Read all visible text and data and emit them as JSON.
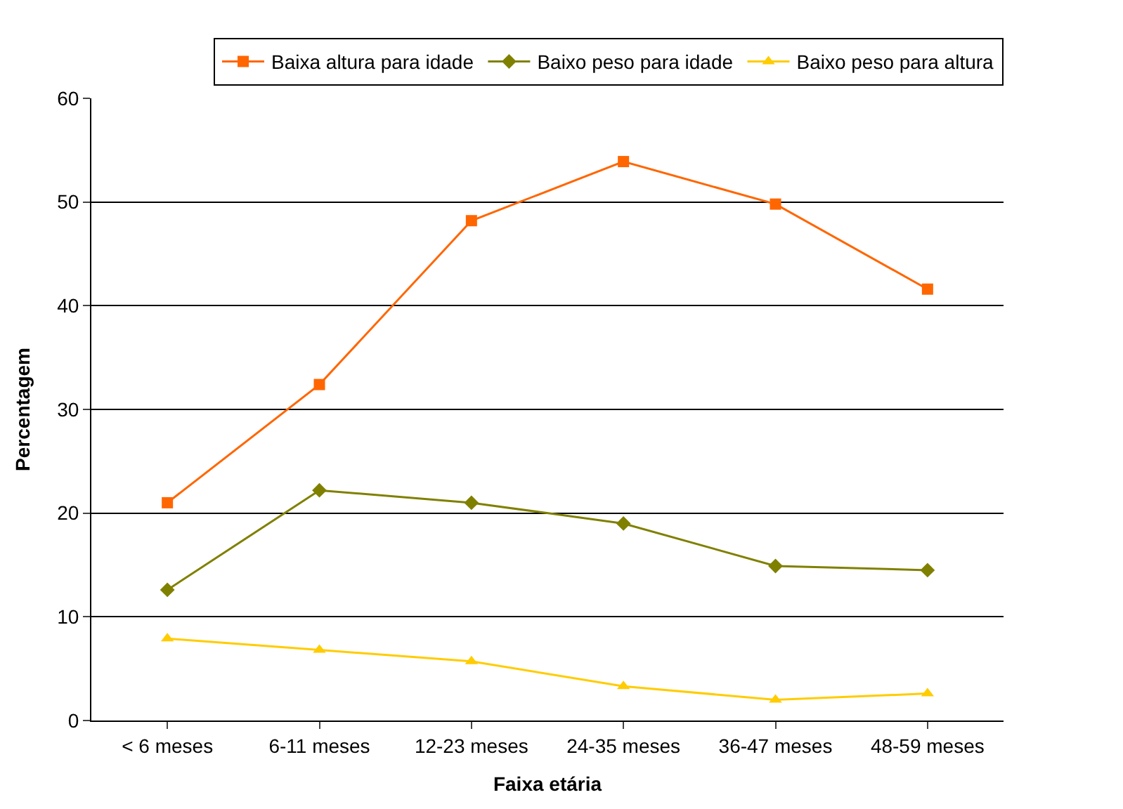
{
  "chart_data": {
    "type": "line",
    "xlabel": "Faixa etária",
    "ylabel": "Percentagem",
    "categories": [
      "< 6 meses",
      "6-11 meses",
      "12-23 meses",
      "24-35 meses",
      "36-47 meses",
      "48-59 meses"
    ],
    "series": [
      {
        "name": "Baixa altura para idade",
        "color": "#ff6600",
        "marker": "square",
        "values": [
          21.0,
          32.4,
          48.2,
          53.9,
          49.8,
          41.6
        ]
      },
      {
        "name": "Baixo peso para idade",
        "color": "#808000",
        "marker": "diamond",
        "values": [
          12.6,
          22.2,
          21.0,
          19.0,
          14.9,
          14.5
        ]
      },
      {
        "name": "Baixo peso para altura",
        "color": "#ffcc00",
        "marker": "triangle",
        "values": [
          7.9,
          6.8,
          5.7,
          3.3,
          2.0,
          2.6
        ]
      }
    ],
    "ylim": [
      0,
      60
    ],
    "yticks": [
      0,
      10,
      20,
      30,
      40,
      50,
      60
    ],
    "grid": "y",
    "legend": "top",
    "line_style": "solid"
  }
}
